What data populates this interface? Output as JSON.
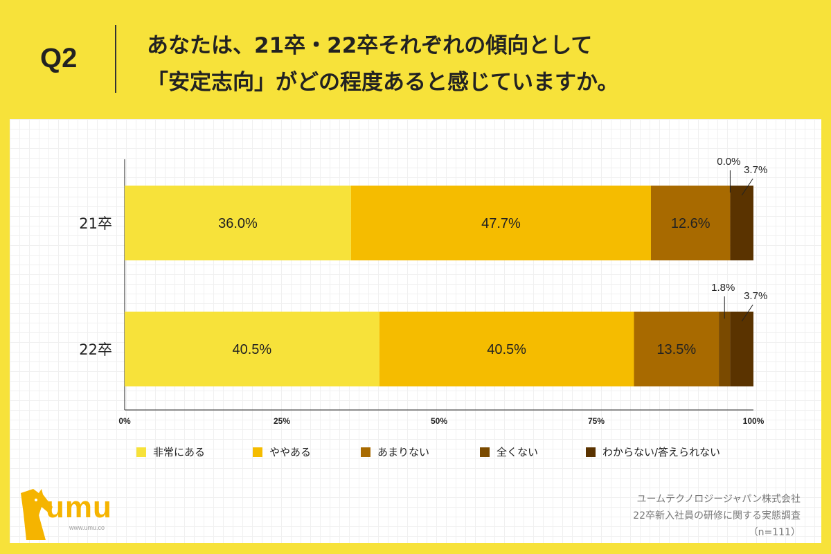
{
  "header": {
    "q_label": "Q2",
    "title_line1": "あなたは、21卒・22卒それぞれの傾向として",
    "title_line2": "「安定志向」がどの程度あると感じていますか。"
  },
  "chart_data": {
    "type": "bar",
    "orientation": "horizontal-stacked-100",
    "categories": [
      "21卒",
      "22卒"
    ],
    "series": [
      {
        "name": "非常にある",
        "values": [
          36.0,
          40.5
        ],
        "color": "#F7E23A",
        "labels": [
          "36.0%",
          "40.5%"
        ]
      },
      {
        "name": "ややある",
        "values": [
          47.7,
          40.5
        ],
        "color": "#F5BC00",
        "labels": [
          "47.7%",
          "40.5%"
        ]
      },
      {
        "name": "あまりない",
        "values": [
          12.6,
          13.5
        ],
        "color": "#A86A00",
        "labels": [
          "12.6%",
          "13.5%"
        ]
      },
      {
        "name": "全くない",
        "values": [
          0.0,
          1.8
        ],
        "color": "#7A4A00",
        "labels": [
          "0.0%",
          "1.8%"
        ]
      },
      {
        "name": "わからない/答えられない",
        "values": [
          3.7,
          3.7
        ],
        "color": "#5A3300",
        "labels": [
          "3.7%",
          "3.7%"
        ]
      }
    ],
    "xlim": [
      0,
      100
    ],
    "xticks": [
      "0%",
      "25%",
      "50%",
      "75%",
      "100%"
    ],
    "legend_position": "bottom",
    "grid": false
  },
  "credit": {
    "line1": "ユームテクノロジージャパン株式会社",
    "line2": "22卒新入社員の研修に関する実態調査",
    "line3": "（n=111）"
  },
  "logo": {
    "text": "umu",
    "url": "www.umu.co",
    "color": "#F5B400"
  }
}
